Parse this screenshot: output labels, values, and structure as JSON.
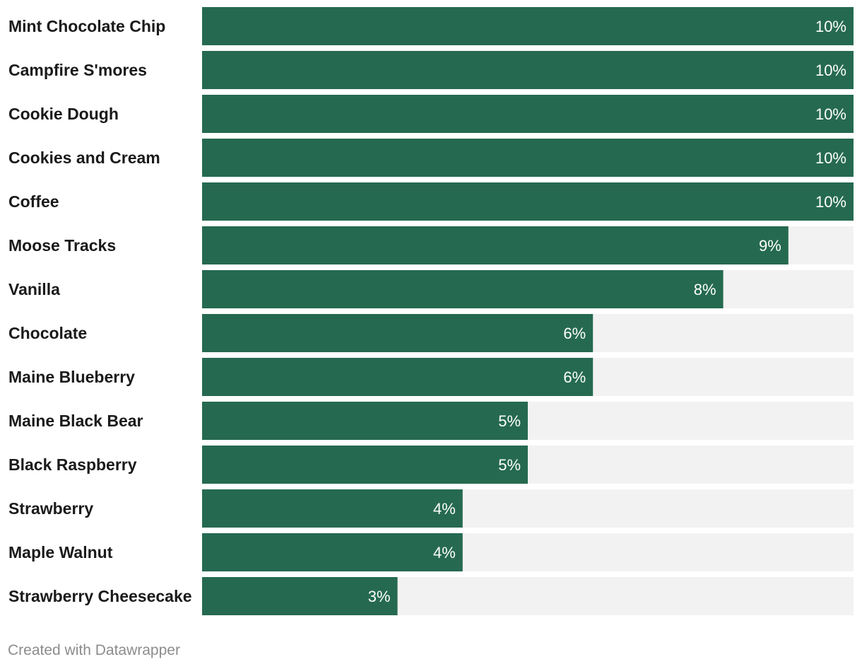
{
  "colors": {
    "bar": "#256a50",
    "track": "#f2f2f2",
    "label_text": "#1a1a1a",
    "value_text": "#ffffff",
    "footer_text": "#8c8c8c"
  },
  "chart_data": {
    "type": "bar",
    "orientation": "horizontal",
    "title": "",
    "xlabel": "",
    "ylabel": "",
    "value_suffix": "%",
    "xlim": [
      0,
      10
    ],
    "categories": [
      "Mint Chocolate Chip",
      "Campfire S'mores",
      "Cookie Dough",
      "Cookies and Cream",
      "Coffee",
      "Moose Tracks",
      "Vanilla",
      "Chocolate",
      "Maine Blueberry",
      "Maine Black Bear",
      "Black Raspberry",
      "Strawberry",
      "Maple Walnut",
      "Strawberry Cheesecake"
    ],
    "values": [
      10,
      10,
      10,
      10,
      10,
      9,
      8,
      6,
      6,
      5,
      5,
      4,
      4,
      3
    ]
  },
  "footer": {
    "credit": "Created with Datawrapper"
  }
}
